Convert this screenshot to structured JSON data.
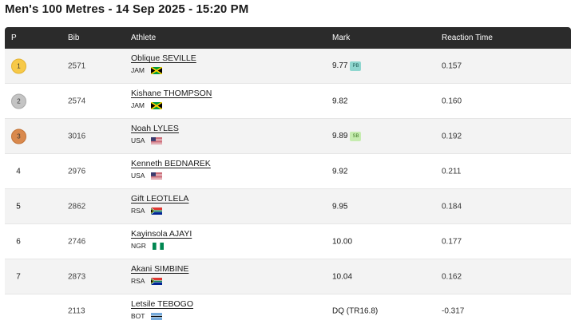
{
  "title": "Men's 100 Metres - 14 Sep 2025 - 15:20 PM",
  "headers": {
    "position": "P",
    "bib": "Bib",
    "athlete": "Athlete",
    "mark": "Mark",
    "reaction": "Reaction Time"
  },
  "rows": [
    {
      "pos": "1",
      "medal": "gold",
      "bib": "2571",
      "name": "Oblique SEVILLE",
      "country": "JAM",
      "flag": "jam",
      "mark": "9.77",
      "badge": "PB",
      "reaction": "0.157"
    },
    {
      "pos": "2",
      "medal": "silver",
      "bib": "2574",
      "name": "Kishane THOMPSON",
      "country": "JAM",
      "flag": "jam",
      "mark": "9.82",
      "badge": "",
      "reaction": "0.160"
    },
    {
      "pos": "3",
      "medal": "bronze",
      "bib": "3016",
      "name": "Noah LYLES",
      "country": "USA",
      "flag": "usa",
      "mark": "9.89",
      "badge": "SB",
      "reaction": "0.192"
    },
    {
      "pos": "4",
      "medal": "",
      "bib": "2976",
      "name": "Kenneth BEDNAREK",
      "country": "USA",
      "flag": "usa",
      "mark": "9.92",
      "badge": "",
      "reaction": "0.211"
    },
    {
      "pos": "5",
      "medal": "",
      "bib": "2862",
      "name": "Gift LEOTLELA",
      "country": "RSA",
      "flag": "rsa",
      "mark": "9.95",
      "badge": "",
      "reaction": "0.184"
    },
    {
      "pos": "6",
      "medal": "",
      "bib": "2746",
      "name": "Kayinsola AJAYI",
      "country": "NGR",
      "flag": "ngr",
      "mark": "10.00",
      "badge": "",
      "reaction": "0.177"
    },
    {
      "pos": "7",
      "medal": "",
      "bib": "2873",
      "name": "Akani SIMBINE",
      "country": "RSA",
      "flag": "rsa",
      "mark": "10.04",
      "badge": "",
      "reaction": "0.162"
    },
    {
      "pos": "",
      "medal": "",
      "bib": "2113",
      "name": "Letsile TEBOGO",
      "country": "BOT",
      "flag": "bot",
      "mark": "DQ (TR16.8)",
      "badge": "",
      "reaction": "-0.317"
    }
  ]
}
